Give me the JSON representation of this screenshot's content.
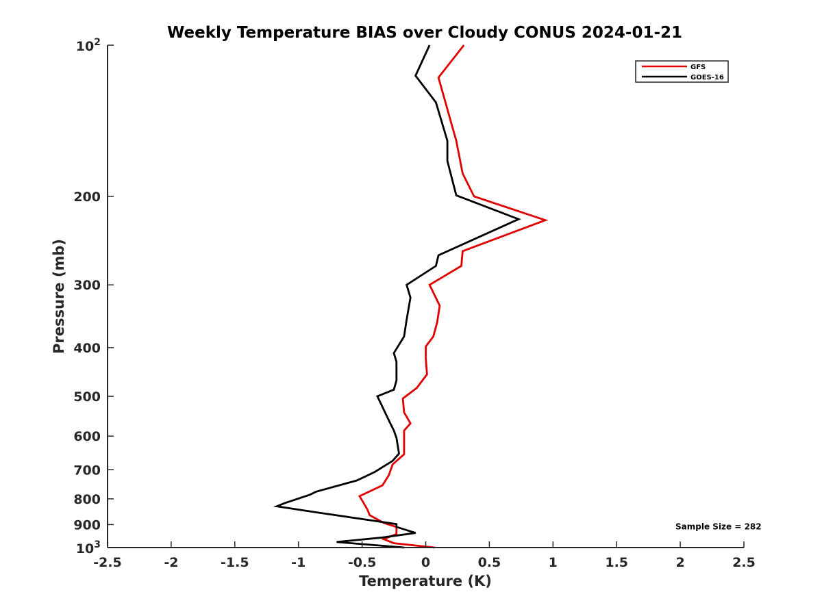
{
  "chart_data": {
    "type": "line",
    "title": "Weekly Temperature BIAS over Cloudy CONUS 2024-01-21",
    "xlabel": "Temperature (K)",
    "ylabel": "Pressure (mb)",
    "xlim": [
      -2.5,
      2.5
    ],
    "ylim": [
      1000,
      100
    ],
    "yscale": "log",
    "y_reversed": true,
    "grid": false,
    "legend_position": "top-right",
    "x_ticks": [
      {
        "value": -2.5,
        "label": "-2.5"
      },
      {
        "value": -2,
        "label": "-2"
      },
      {
        "value": -1.5,
        "label": "-1.5"
      },
      {
        "value": -1,
        "label": "-1"
      },
      {
        "value": -0.5,
        "label": "-0.5"
      },
      {
        "value": 0,
        "label": "0"
      },
      {
        "value": 0.5,
        "label": "0.5"
      },
      {
        "value": 1,
        "label": "1"
      },
      {
        "value": 1.5,
        "label": "1.5"
      },
      {
        "value": 2,
        "label": "2"
      },
      {
        "value": 2.5,
        "label": "2.5"
      }
    ],
    "y_ticks": [
      {
        "value": 100,
        "base": "10",
        "exp": "2"
      },
      {
        "value": 200,
        "label": "200"
      },
      {
        "value": 300,
        "label": "300"
      },
      {
        "value": 400,
        "label": "400"
      },
      {
        "value": 500,
        "label": "500"
      },
      {
        "value": 600,
        "label": "600"
      },
      {
        "value": 700,
        "label": "700"
      },
      {
        "value": 800,
        "label": "800"
      },
      {
        "value": 900,
        "label": "900"
      },
      {
        "value": 1000,
        "base": "10",
        "exp": "3"
      }
    ],
    "series": [
      {
        "name": "GFS",
        "color": "#e00000",
        "points": [
          [
            0.07,
            1000
          ],
          [
            -0.25,
            980
          ],
          [
            -0.33,
            962
          ],
          [
            -0.23,
            940
          ],
          [
            -0.23,
            910
          ],
          [
            -0.33,
            893
          ],
          [
            -0.44,
            862
          ],
          [
            -0.46,
            838
          ],
          [
            -0.52,
            790
          ],
          [
            -0.34,
            752
          ],
          [
            -0.29,
            718
          ],
          [
            -0.26,
            683
          ],
          [
            -0.17,
            652
          ],
          [
            -0.17,
            605
          ],
          [
            -0.17,
            585
          ],
          [
            -0.12,
            566
          ],
          [
            -0.17,
            538
          ],
          [
            -0.18,
            505
          ],
          [
            -0.07,
            481
          ],
          [
            0.01,
            452
          ],
          [
            0.0,
            420
          ],
          [
            0.0,
            398
          ],
          [
            0.06,
            380
          ],
          [
            0.09,
            356
          ],
          [
            0.11,
            330
          ],
          [
            0.03,
            300
          ],
          [
            0.28,
            275
          ],
          [
            0.29,
            257
          ],
          [
            0.94,
            223
          ],
          [
            0.38,
            200
          ],
          [
            0.29,
            180
          ],
          [
            0.24,
            155
          ],
          [
            0.1,
            116
          ],
          [
            0.3,
            100
          ]
        ]
      },
      {
        "name": "GOES-16",
        "color": "#000000",
        "points": [
          [
            -0.17,
            1000
          ],
          [
            -0.7,
            975
          ],
          [
            -0.34,
            955
          ],
          [
            -0.08,
            935
          ],
          [
            -0.23,
            910
          ],
          [
            -0.23,
            898
          ],
          [
            -0.87,
            850
          ],
          [
            -1.17,
            828
          ],
          [
            -1.11,
            816
          ],
          [
            -0.91,
            785
          ],
          [
            -0.86,
            774
          ],
          [
            -0.54,
            735
          ],
          [
            -0.4,
            707
          ],
          [
            -0.26,
            672
          ],
          [
            -0.21,
            650
          ],
          [
            -0.23,
            605
          ],
          [
            -0.25,
            585
          ],
          [
            -0.28,
            565
          ],
          [
            -0.38,
            500
          ],
          [
            -0.25,
            485
          ],
          [
            -0.23,
            465
          ],
          [
            -0.23,
            427
          ],
          [
            -0.25,
            410
          ],
          [
            -0.17,
            380
          ],
          [
            -0.15,
            352
          ],
          [
            -0.12,
            318
          ],
          [
            -0.15,
            300
          ],
          [
            0.08,
            275
          ],
          [
            0.1,
            262
          ],
          [
            0.73,
            222
          ],
          [
            0.24,
            199
          ],
          [
            0.17,
            170
          ],
          [
            0.17,
            155
          ],
          [
            0.08,
            130
          ],
          [
            -0.08,
            115
          ],
          [
            0.03,
            100
          ]
        ]
      }
    ],
    "annotations": [
      {
        "text": "Sample Size = 282",
        "x": 2.3,
        "y": 920
      }
    ]
  }
}
